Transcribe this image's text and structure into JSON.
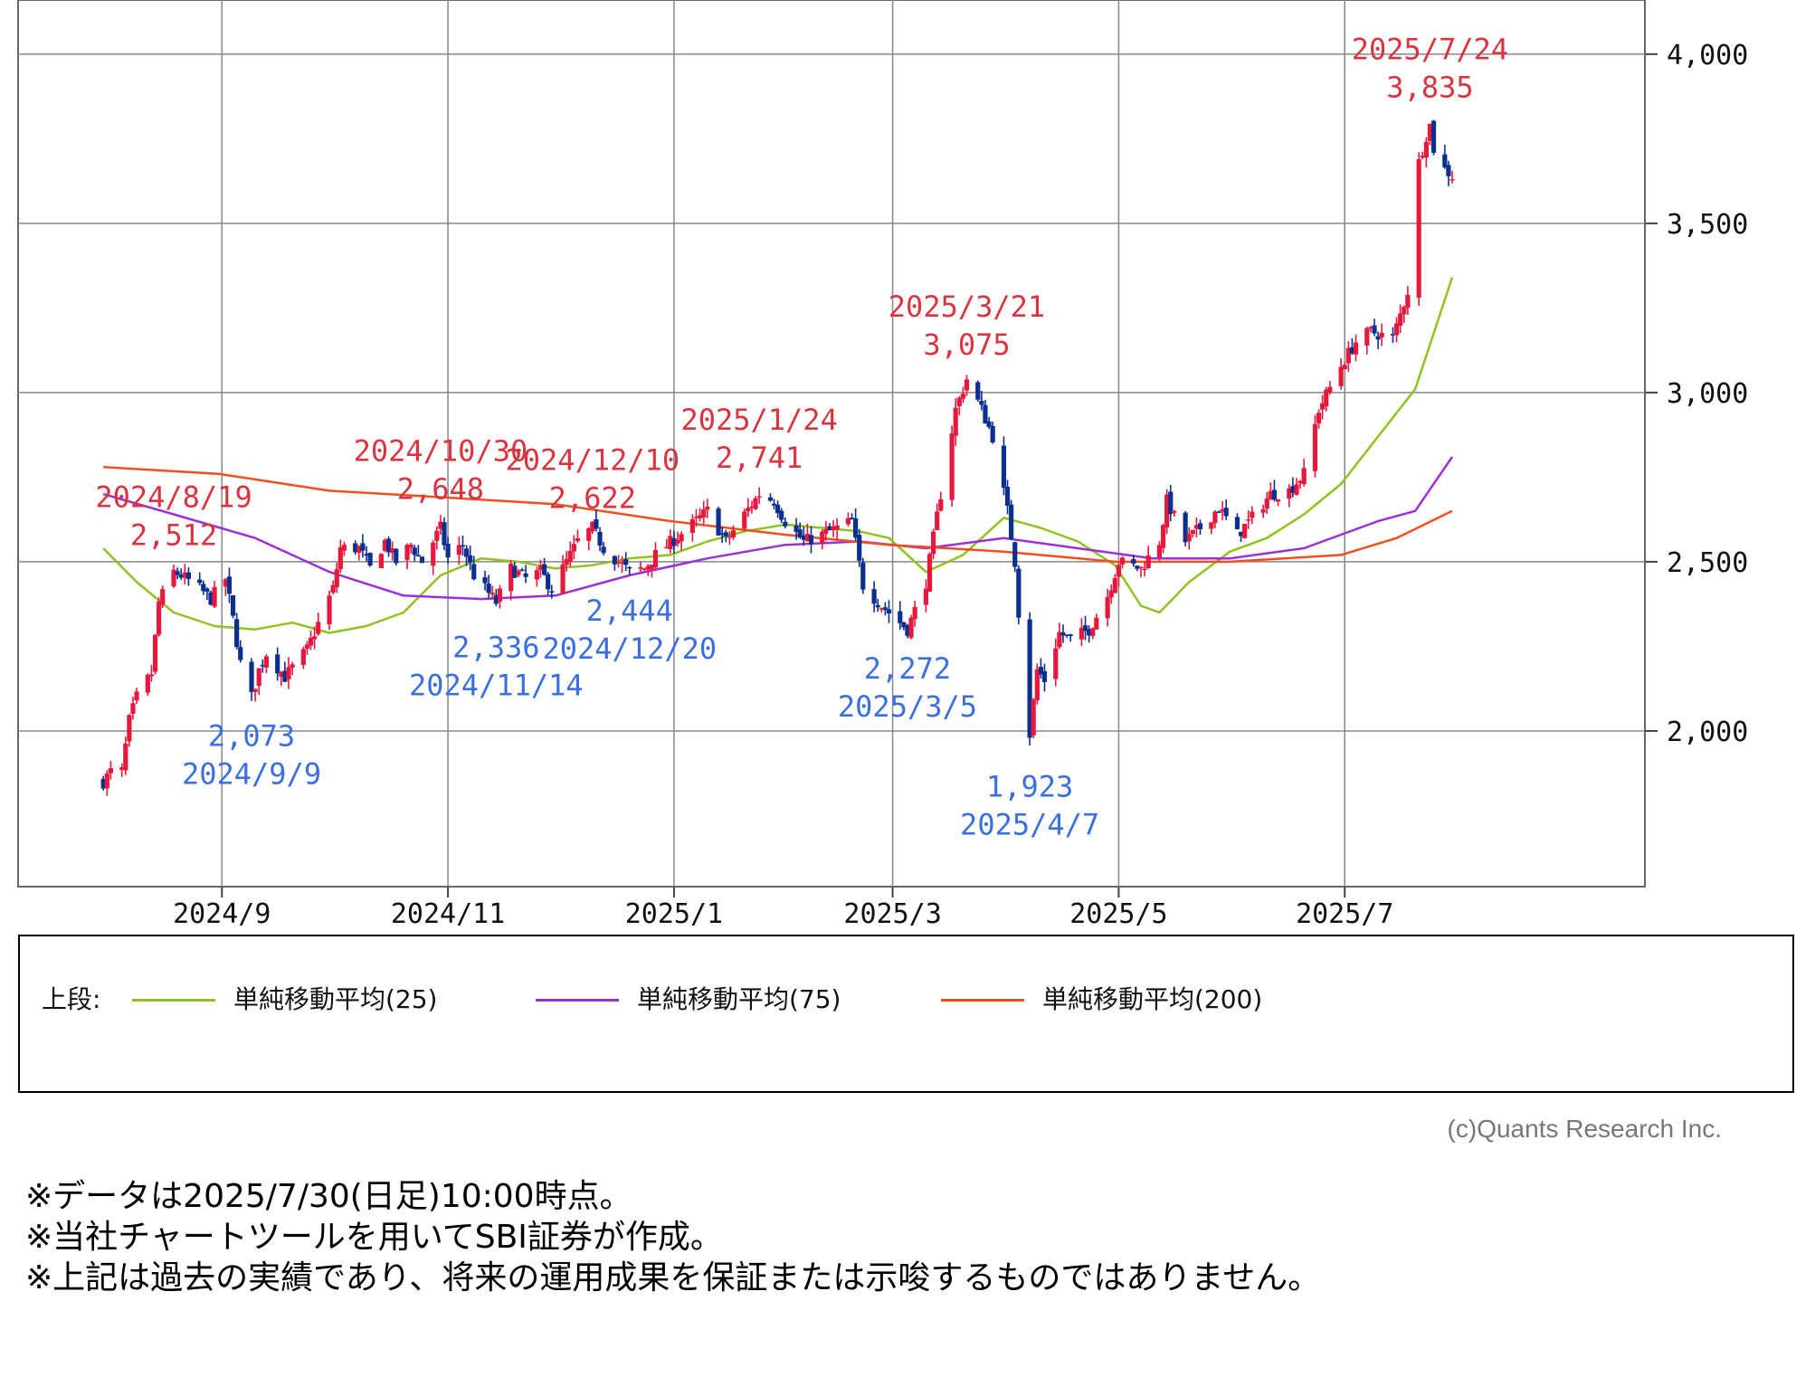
{
  "chart_data": {
    "type": "candlestick",
    "title": "",
    "xlabel": "",
    "ylabel": "",
    "ylim": [
      1540,
      4160
    ],
    "x_range": [
      "2024-07-08",
      "2025-09-20"
    ],
    "y_ticks": [
      2000,
      2500,
      3000,
      3500,
      4000
    ],
    "y_tick_labels": [
      "2,000",
      "2,500",
      "3,000",
      "3,500",
      "4,000"
    ],
    "x_ticks": [
      {
        "date": "2024-09-01",
        "label": "2024/9"
      },
      {
        "date": "2024-11-01",
        "label": "2024/11"
      },
      {
        "date": "2025-01-01",
        "label": "2025/1"
      },
      {
        "date": "2025-03-01",
        "label": "2025/3"
      },
      {
        "date": "2025-05-01",
        "label": "2025/5"
      },
      {
        "date": "2025-07-01",
        "label": "2025/7"
      }
    ],
    "grid": true,
    "up_color": "#e8173c",
    "down_color": "#0b2f8f",
    "price_path": [
      [
        "2024-07-31",
        1850
      ],
      [
        "2024-08-02",
        1880
      ],
      [
        "2024-08-05",
        1880
      ],
      [
        "2024-08-07",
        2030
      ],
      [
        "2024-08-09",
        2100
      ],
      [
        "2024-08-13",
        2170
      ],
      [
        "2024-08-15",
        2380
      ],
      [
        "2024-08-19",
        2470
      ],
      [
        "2024-08-21",
        2460
      ],
      [
        "2024-08-26",
        2420
      ],
      [
        "2024-08-29",
        2390
      ],
      [
        "2024-09-02",
        2450
      ],
      [
        "2024-09-04",
        2330
      ],
      [
        "2024-09-06",
        2200
      ],
      [
        "2024-09-09",
        2100
      ],
      [
        "2024-09-11",
        2180
      ],
      [
        "2024-09-13",
        2230
      ],
      [
        "2024-09-18",
        2160
      ],
      [
        "2024-09-24",
        2240
      ],
      [
        "2024-10-01",
        2420
      ],
      [
        "2024-10-03",
        2540
      ],
      [
        "2024-10-08",
        2540
      ],
      [
        "2024-10-11",
        2480
      ],
      [
        "2024-10-15",
        2560
      ],
      [
        "2024-10-18",
        2500
      ],
      [
        "2024-10-22",
        2550
      ],
      [
        "2024-10-25",
        2500
      ],
      [
        "2024-10-30",
        2600
      ],
      [
        "2024-11-01",
        2510
      ],
      [
        "2024-11-05",
        2550
      ],
      [
        "2024-11-08",
        2460
      ],
      [
        "2024-11-14",
        2380
      ],
      [
        "2024-11-18",
        2480
      ],
      [
        "2024-11-22",
        2450
      ],
      [
        "2024-11-26",
        2470
      ],
      [
        "2024-11-29",
        2420
      ],
      [
        "2024-12-03",
        2500
      ],
      [
        "2024-12-06",
        2560
      ],
      [
        "2024-12-10",
        2600
      ],
      [
        "2024-12-13",
        2540
      ],
      [
        "2024-12-17",
        2500
      ],
      [
        "2024-12-20",
        2470
      ],
      [
        "2024-12-24",
        2480
      ],
      [
        "2024-12-27",
        2520
      ],
      [
        "2025-01-07",
        2620
      ],
      [
        "2025-01-10",
        2650
      ],
      [
        "2025-01-15",
        2560
      ],
      [
        "2025-01-20",
        2640
      ],
      [
        "2025-01-24",
        2700
      ],
      [
        "2025-01-28",
        2680
      ],
      [
        "2025-01-31",
        2620
      ],
      [
        "2025-02-05",
        2560
      ],
      [
        "2025-02-10",
        2580
      ],
      [
        "2025-02-14",
        2600
      ],
      [
        "2025-02-18",
        2620
      ],
      [
        "2025-02-21",
        2430
      ],
      [
        "2025-02-26",
        2370
      ],
      [
        "2025-03-05",
        2300
      ],
      [
        "2025-03-10",
        2440
      ],
      [
        "2025-03-14",
        2700
      ],
      [
        "2025-03-18",
        2950
      ],
      [
        "2025-03-21",
        3040
      ],
      [
        "2025-03-25",
        2950
      ],
      [
        "2025-03-28",
        2870
      ],
      [
        "2025-04-01",
        2650
      ],
      [
        "2025-04-03",
        2500
      ],
      [
        "2025-04-04",
        2350
      ],
      [
        "2025-04-07",
        1990
      ],
      [
        "2025-04-09",
        2180
      ],
      [
        "2025-04-11",
        2150
      ],
      [
        "2025-04-15",
        2290
      ],
      [
        "2025-04-18",
        2270
      ],
      [
        "2025-04-23",
        2300
      ],
      [
        "2025-04-28",
        2400
      ],
      [
        "2025-05-01",
        2500
      ],
      [
        "2025-05-07",
        2480
      ],
      [
        "2025-05-12",
        2560
      ],
      [
        "2025-05-14",
        2680
      ],
      [
        "2025-05-19",
        2560
      ],
      [
        "2025-05-23",
        2600
      ],
      [
        "2025-05-28",
        2660
      ],
      [
        "2025-06-02",
        2580
      ],
      [
        "2025-06-06",
        2630
      ],
      [
        "2025-06-11",
        2700
      ],
      [
        "2025-06-16",
        2710
      ],
      [
        "2025-06-20",
        2760
      ],
      [
        "2025-06-24",
        2950
      ],
      [
        "2025-06-30",
        3080
      ],
      [
        "2025-07-04",
        3150
      ],
      [
        "2025-07-08",
        3180
      ],
      [
        "2025-07-14",
        3160
      ],
      [
        "2025-07-18",
        3300
      ],
      [
        "2025-07-21",
        3680
      ],
      [
        "2025-07-23",
        3760
      ],
      [
        "2025-07-24",
        3790
      ],
      [
        "2025-07-25",
        3720
      ],
      [
        "2025-07-28",
        3660
      ],
      [
        "2025-07-30",
        3640
      ]
    ],
    "moving_averages": [
      {
        "name": "単純移動平均(25)",
        "color": "#8fc31f",
        "points": [
          [
            "2024-07-31",
            2540
          ],
          [
            "2024-08-09",
            2440
          ],
          [
            "2024-08-19",
            2350
          ],
          [
            "2024-08-30",
            2310
          ],
          [
            "2024-09-10",
            2300
          ],
          [
            "2024-09-20",
            2320
          ],
          [
            "2024-09-30",
            2290
          ],
          [
            "2024-10-10",
            2310
          ],
          [
            "2024-10-20",
            2350
          ],
          [
            "2024-10-30",
            2460
          ],
          [
            "2024-11-10",
            2510
          ],
          [
            "2024-11-20",
            2500
          ],
          [
            "2024-11-30",
            2480
          ],
          [
            "2024-12-10",
            2490
          ],
          [
            "2024-12-20",
            2510
          ],
          [
            "2024-12-31",
            2520
          ],
          [
            "2025-01-10",
            2560
          ],
          [
            "2025-01-20",
            2590
          ],
          [
            "2025-01-31",
            2610
          ],
          [
            "2025-02-10",
            2600
          ],
          [
            "2025-02-20",
            2590
          ],
          [
            "2025-02-28",
            2570
          ],
          [
            "2025-03-10",
            2470
          ],
          [
            "2025-03-20",
            2520
          ],
          [
            "2025-03-31",
            2630
          ],
          [
            "2025-04-10",
            2600
          ],
          [
            "2025-04-20",
            2560
          ],
          [
            "2025-04-30",
            2490
          ],
          [
            "2025-05-07",
            2370
          ],
          [
            "2025-05-12",
            2350
          ],
          [
            "2025-05-20",
            2440
          ],
          [
            "2025-05-31",
            2530
          ],
          [
            "2025-06-10",
            2570
          ],
          [
            "2025-06-20",
            2640
          ],
          [
            "2025-06-30",
            2730
          ],
          [
            "2025-07-10",
            2870
          ],
          [
            "2025-07-20",
            3010
          ],
          [
            "2025-07-30",
            3340
          ]
        ]
      },
      {
        "name": "単純移動平均(75)",
        "color": "#9b30d9",
        "points": [
          [
            "2024-07-31",
            2700
          ],
          [
            "2024-08-19",
            2640
          ],
          [
            "2024-09-10",
            2570
          ],
          [
            "2024-09-30",
            2470
          ],
          [
            "2024-10-20",
            2400
          ],
          [
            "2024-11-10",
            2390
          ],
          [
            "2024-11-30",
            2400
          ],
          [
            "2024-12-20",
            2460
          ],
          [
            "2025-01-10",
            2510
          ],
          [
            "2025-01-31",
            2550
          ],
          [
            "2025-02-20",
            2560
          ],
          [
            "2025-03-10",
            2540
          ],
          [
            "2025-03-31",
            2570
          ],
          [
            "2025-04-20",
            2540
          ],
          [
            "2025-05-10",
            2510
          ],
          [
            "2025-05-31",
            2510
          ],
          [
            "2025-06-20",
            2540
          ],
          [
            "2025-07-10",
            2620
          ],
          [
            "2025-07-20",
            2650
          ],
          [
            "2025-07-30",
            2810
          ]
        ]
      },
      {
        "name": "単純移動平均(200)",
        "color": "#f04f1e",
        "points": [
          [
            "2024-07-31",
            2780
          ],
          [
            "2024-08-31",
            2760
          ],
          [
            "2024-09-30",
            2710
          ],
          [
            "2024-10-31",
            2690
          ],
          [
            "2024-11-30",
            2670
          ],
          [
            "2024-12-31",
            2620
          ],
          [
            "2025-01-31",
            2580
          ],
          [
            "2025-02-28",
            2550
          ],
          [
            "2025-03-31",
            2530
          ],
          [
            "2025-04-30",
            2500
          ],
          [
            "2025-05-31",
            2500
          ],
          [
            "2025-06-30",
            2520
          ],
          [
            "2025-07-15",
            2570
          ],
          [
            "2025-07-30",
            2650
          ]
        ]
      }
    ],
    "annotations": [
      {
        "kind": "high",
        "date_label": "2024/8/19",
        "value_label": "2,512",
        "anchor": "2024-08-19",
        "anchor_value": 2512
      },
      {
        "kind": "high",
        "date_label": "2024/10/30",
        "value_label": "2,648",
        "anchor": "2024-10-30",
        "anchor_value": 2648
      },
      {
        "kind": "high",
        "date_label": "2024/12/10",
        "value_label": "2,622",
        "anchor": "2024-12-10",
        "anchor_value": 2622
      },
      {
        "kind": "high",
        "date_label": "2025/1/24",
        "value_label": "2,741",
        "anchor": "2025-01-24",
        "anchor_value": 2741
      },
      {
        "kind": "high",
        "date_label": "2025/3/21",
        "value_label": "3,075",
        "anchor": "2025-03-21",
        "anchor_value": 3075
      },
      {
        "kind": "high",
        "date_label": "2025/7/24",
        "value_label": "3,835",
        "anchor": "2025-07-24",
        "anchor_value": 3835
      },
      {
        "kind": "low",
        "date_label": "2024/9/9",
        "value_label": "2,073",
        "anchor": "2024-09-09",
        "anchor_value": 2073
      },
      {
        "kind": "low",
        "date_label": "2024/11/14",
        "value_label": "2,336",
        "anchor": "2024-11-14",
        "anchor_value": 2336
      },
      {
        "kind": "low",
        "date_label": "2024/12/20",
        "value_label": "2,444",
        "anchor": "2024-12-20",
        "anchor_value": 2444
      },
      {
        "kind": "low",
        "date_label": "2025/3/5",
        "value_label": "2,272",
        "anchor": "2025-03-05",
        "anchor_value": 2272
      },
      {
        "kind": "low",
        "date_label": "2025/4/7",
        "value_label": "1,923",
        "anchor": "2025-04-07",
        "anchor_value": 1923
      }
    ],
    "legend": {
      "label": "上段:",
      "placement": "below",
      "items": [
        "単純移動平均(25)",
        "単純移動平均(75)",
        "単純移動平均(200)"
      ]
    }
  },
  "credit": "(c)Quants Research Inc.",
  "notes": [
    "※データは2025/7/30(日足)10:00時点。",
    "※当社チャートツールを用いてSBI証券が作成。",
    "※上記は過去の実績であり、将来の運用成果を保証または示唆するものではありません。"
  ],
  "colors": {
    "high_label": "#d9343f",
    "low_label": "#3b6fe0",
    "grid": "#888888"
  }
}
